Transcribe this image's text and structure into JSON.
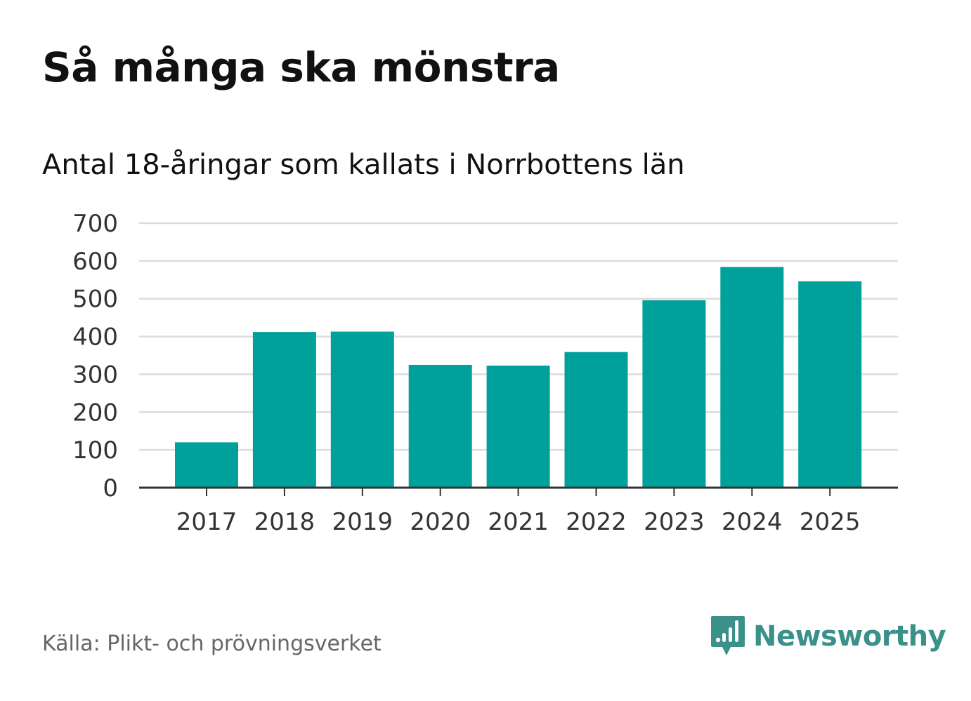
{
  "title": "Så många ska mönstra",
  "subtitle": "Antal 18-åringar som kallats i Norrbottens län",
  "source": "Källa: Plikt- och prövningsverket",
  "brand": {
    "name": "Newsworthy",
    "icon": "newsworthy-logo-icon",
    "color": "#3a9189"
  },
  "colors": {
    "bar": "#00a19a",
    "grid": "#dddddd",
    "axis": "#333333",
    "tick_text": "#333333"
  },
  "chart_data": {
    "type": "bar",
    "categories": [
      "2017",
      "2018",
      "2019",
      "2020",
      "2021",
      "2022",
      "2023",
      "2024",
      "2025"
    ],
    "values": [
      120,
      412,
      413,
      325,
      323,
      359,
      496,
      584,
      546
    ],
    "ylim": [
      0,
      700
    ],
    "yticks": [
      0,
      100,
      200,
      300,
      400,
      500,
      600,
      700
    ],
    "grid": true,
    "xlabel": "",
    "ylabel": ""
  }
}
